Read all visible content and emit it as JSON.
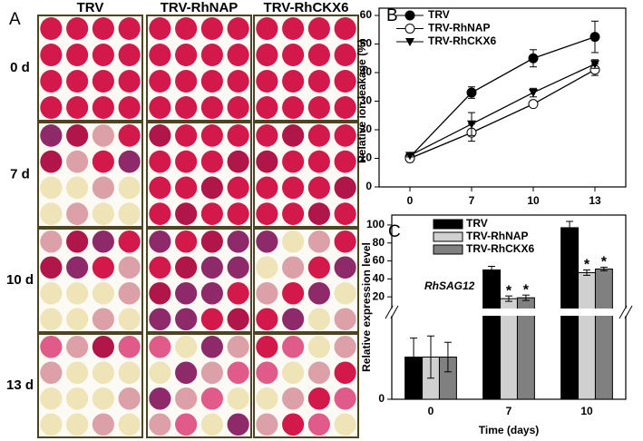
{
  "panel_a": {
    "label": "A",
    "columns": [
      "TRV",
      "TRV-RhNAP",
      "TRV-RhCKX6"
    ],
    "rows": [
      "0 d",
      "7 d",
      "10 d",
      "13 d"
    ]
  },
  "chart_data": [
    {
      "type": "line",
      "panel": "B",
      "ylabel": "Relative ion leakage (%)",
      "categories": [
        "0",
        "7",
        "10",
        "13"
      ],
      "ylim": [
        0,
        60
      ],
      "yticks": [
        0,
        10,
        20,
        30,
        40,
        50,
        60
      ],
      "legend": "upper left",
      "series": [
        {
          "name": "TRV",
          "color": "#000000",
          "marker": "filled-circle",
          "values": [
            10.5,
            33,
            45,
            52.5
          ],
          "errors": [
            1,
            2,
            3,
            5.5
          ]
        },
        {
          "name": "TRV-RhNAP",
          "color": "#000000",
          "marker": "open-circle",
          "values": [
            10,
            19,
            29,
            41
          ],
          "errors": [
            0.5,
            3,
            1,
            2
          ]
        },
        {
          "name": "TRV-RhCKX6",
          "color": "#000000",
          "marker": "triangle-down",
          "values": [
            11,
            22,
            33,
            43
          ],
          "errors": [
            0.5,
            4,
            1.5,
            1.5
          ]
        }
      ]
    },
    {
      "type": "broken-bar",
      "panel": "C",
      "annotation": "RhSAG12",
      "xlabel": "Time (days)",
      "ylabel": "Relative expression level",
      "categories": [
        "0",
        "7",
        "10"
      ],
      "legend": "upper left",
      "segments": [
        {
          "ylim": [
            0,
            2
          ],
          "yticks": [
            0
          ]
        },
        {
          "ylim": [
            5,
            105
          ],
          "yticks": [
            20,
            40,
            60,
            80,
            100
          ]
        }
      ],
      "series": [
        {
          "name": "TRV",
          "color": "#000000",
          "values": [
            1,
            50,
            97
          ],
          "errors": [
            0.45,
            4,
            7
          ]
        },
        {
          "name": "TRV-RhNAP",
          "color": "#d0d0d0",
          "values": [
            1,
            18,
            47
          ],
          "errors": [
            0.5,
            3,
            3
          ],
          "significance": [
            null,
            "*",
            "*"
          ]
        },
        {
          "name": "TRV-RhCKX6",
          "color": "#808080",
          "values": [
            1,
            19,
            51
          ],
          "errors": [
            0.35,
            3,
            2
          ],
          "significance": [
            null,
            "*",
            "*"
          ]
        }
      ]
    }
  ]
}
